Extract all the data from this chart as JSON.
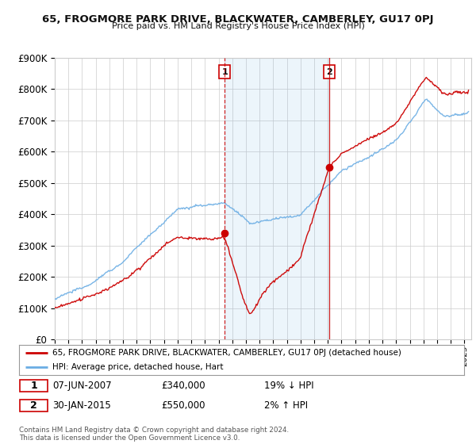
{
  "title": "65, FROGMORE PARK DRIVE, BLACKWATER, CAMBERLEY, GU17 0PJ",
  "subtitle": "Price paid vs. HM Land Registry's House Price Index (HPI)",
  "ylabel_ticks": [
    "£0",
    "£100K",
    "£200K",
    "£300K",
    "£400K",
    "£500K",
    "£600K",
    "£700K",
    "£800K",
    "£900K"
  ],
  "ylim": [
    0,
    900000
  ],
  "xlim_start": 1995.0,
  "xlim_end": 2025.5,
  "sale1_date": 2007.44,
  "sale1_price": 340000,
  "sale2_date": 2015.08,
  "sale2_price": 550000,
  "legend_red": "65, FROGMORE PARK DRIVE, BLACKWATER, CAMBERLEY, GU17 0PJ (detached house)",
  "legend_blue": "HPI: Average price, detached house, Hart",
  "footer": "Contains HM Land Registry data © Crown copyright and database right 2024.\nThis data is licensed under the Open Government Licence v3.0.",
  "hpi_color": "#6aade4",
  "price_color": "#cc0000",
  "grid_color": "#cccccc",
  "background_color": "#ffffff"
}
